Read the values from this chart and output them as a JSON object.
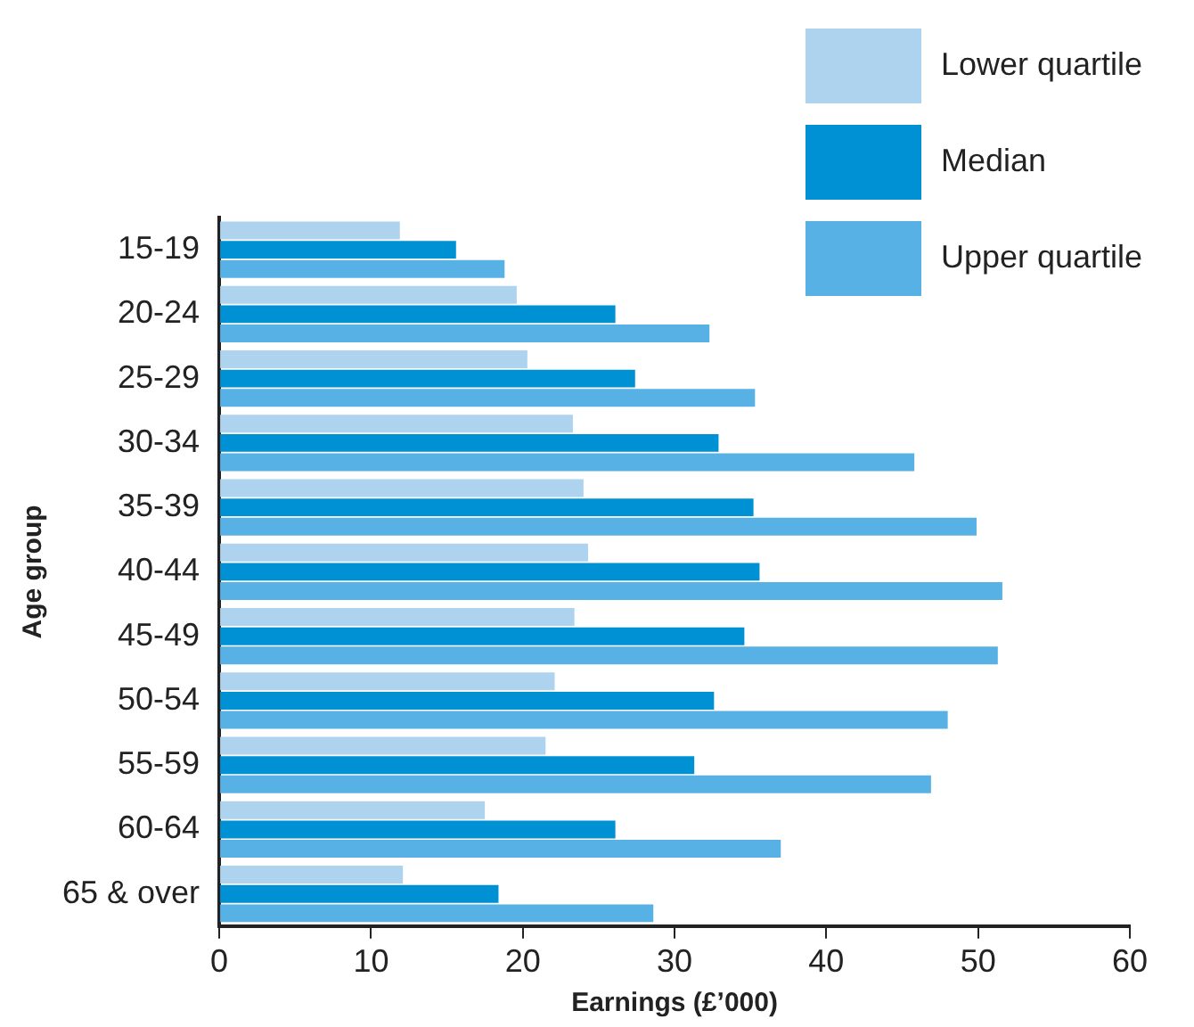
{
  "chart_data": {
    "type": "bar",
    "orientation": "horizontal",
    "xlabel": "Earnings (£’000)",
    "ylabel": "Age group",
    "categories": [
      "15-19",
      "20-24",
      "25-29",
      "30-34",
      "35-39",
      "40-44",
      "45-49",
      "50-54",
      "55-59",
      "60-64",
      "65 & over"
    ],
    "series": [
      {
        "name": "Lower quartile",
        "color": "#aed3ef",
        "values": [
          11.9,
          19.6,
          20.3,
          23.3,
          24.0,
          24.3,
          23.4,
          22.1,
          21.5,
          17.5,
          12.1
        ]
      },
      {
        "name": "Median",
        "color": "#0091d5",
        "values": [
          15.6,
          26.1,
          27.4,
          32.9,
          35.2,
          35.6,
          34.6,
          32.6,
          31.3,
          26.1,
          18.4
        ]
      },
      {
        "name": "Upper quartile",
        "color": "#58b1e4",
        "values": [
          18.8,
          32.3,
          35.3,
          45.8,
          49.9,
          51.6,
          51.3,
          48.0,
          46.9,
          37.0,
          28.6
        ]
      }
    ],
    "xlim": [
      0,
      60
    ],
    "xticks": [
      0,
      10,
      20,
      30,
      40,
      50,
      60
    ],
    "grid": false,
    "legend": "top right"
  }
}
